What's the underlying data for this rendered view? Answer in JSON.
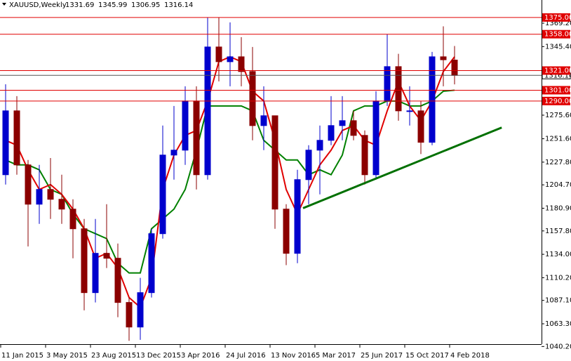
{
  "chart_data": {
    "type": "candlestick",
    "title": "XAUUSD,Weekly",
    "categories": [
      "11 Jan 2015",
      null,
      null,
      null,
      "3 May 2015",
      null,
      null,
      null,
      "23 Aug 2015",
      null,
      null,
      null,
      "13 Dec 2015",
      null,
      null,
      null,
      "3 Apr 2016",
      null,
      null,
      null,
      "24 Jul 2016",
      null,
      null,
      null,
      "13 Nov 2016",
      null,
      null,
      null,
      "5 Mar 2017",
      null,
      null,
      null,
      "25 Jun 2017",
      null,
      null,
      null,
      "15 Oct 2017",
      null,
      null,
      null,
      "4 Feb 2018"
    ],
    "open": [
      1215,
      1280,
      1225,
      1185,
      1200,
      1190,
      1180,
      1160,
      1095,
      1135,
      1130,
      1085,
      1060,
      1095,
      1155,
      1235,
      1240,
      1290,
      1215,
      1345,
      1330,
      1335,
      1320,
      1265,
      1275,
      1180,
      1135,
      1210,
      1240,
      1250,
      1265,
      1270,
      1255,
      1215,
      1290,
      1325,
      1280,
      1280,
      1248,
      1335,
      1331.69
    ],
    "high": [
      1307,
      1295,
      1230,
      1225,
      1232,
      1215,
      1190,
      1170,
      1170,
      1185,
      1145,
      1090,
      1110,
      1160,
      1265,
      1285,
      1305,
      1305,
      1375,
      1375,
      1370,
      1355,
      1345,
      1305,
      1275,
      1185,
      1220,
      1245,
      1265,
      1295,
      1295,
      1280,
      1260,
      1300,
      1358,
      1338,
      1305,
      1290,
      1340,
      1366,
      1345.99
    ],
    "low": [
      1205,
      1215,
      1142,
      1165,
      1170,
      1165,
      1130,
      1077,
      1085,
      1120,
      1070,
      1046,
      1047,
      1090,
      1150,
      1210,
      1225,
      1200,
      1210,
      1310,
      1305,
      1305,
      1250,
      1240,
      1160,
      1123,
      1125,
      1185,
      1195,
      1245,
      1250,
      1250,
      1205,
      1210,
      1285,
      1270,
      1265,
      1236,
      1245,
      1305,
      1306.95
    ],
    "close": [
      1280,
      1225,
      1185,
      1200,
      1190,
      1180,
      1160,
      1095,
      1135,
      1130,
      1085,
      1060,
      1095,
      1155,
      1235,
      1240,
      1290,
      1215,
      1345,
      1330,
      1335,
      1320,
      1265,
      1275,
      1180,
      1135,
      1210,
      1240,
      1250,
      1265,
      1270,
      1255,
      1215,
      1290,
      1325,
      1280,
      1280,
      1248,
      1335,
      1332,
      1316.14
    ],
    "bull_color": "#0000cd",
    "bear_color": "#8b0000",
    "tenkan": {
      "color": "#e00000",
      "values": [
        1250,
        1245,
        1220,
        1200,
        1205,
        1195,
        1180,
        1160,
        1130,
        1135,
        1120,
        1090,
        1080,
        1110,
        1200,
        1235,
        1255,
        1260,
        1290,
        1330,
        1335,
        1330,
        1300,
        1290,
        1250,
        1200,
        1175,
        1200,
        1225,
        1240,
        1260,
        1265,
        1250,
        1245,
        1280,
        1310,
        1285,
        1270,
        1290,
        1320,
        1335
      ]
    },
    "kijun": {
      "color": "#008000",
      "values": [
        1230,
        1225,
        1225,
        1220,
        1200,
        1195,
        1175,
        1160,
        1155,
        1150,
        1125,
        1115,
        1115,
        1160,
        1170,
        1180,
        1200,
        1240,
        1285,
        1285,
        1285,
        1285,
        1280,
        1250,
        1240,
        1230,
        1230,
        1215,
        1220,
        1215,
        1235,
        1280,
        1285,
        1285,
        1290,
        1290,
        1285,
        1285,
        1290,
        1300,
        1301
      ]
    },
    "trendline": {
      "color": "#007000",
      "x": [
        26.5,
        44.2
      ],
      "y": [
        1181,
        1263
      ]
    },
    "levels": [
      {
        "value": 1375,
        "label": "1375.00"
      },
      {
        "value": 1358,
        "label": "1358.00"
      },
      {
        "value": 1321,
        "label": "1321.00"
      },
      {
        "value": 1301,
        "label": "1301.00"
      },
      {
        "value": 1290,
        "label": "1290.00"
      }
    ],
    "level_color": "#e00000",
    "ylim": [
      1043.3,
      1392.8
    ],
    "yticks": [
      {
        "value": 1369.2,
        "label": "1369.20"
      },
      {
        "value": 1345.4,
        "label": "1345.40"
      },
      {
        "value": 1275.6,
        "label": "1275.60"
      },
      {
        "value": 1251.6,
        "label": "1251.60"
      },
      {
        "value": 1227.8,
        "label": "1227.80"
      },
      {
        "value": 1204.7,
        "label": "1204.70"
      },
      {
        "value": 1180.9,
        "label": "1180.90"
      },
      {
        "value": 1157.8,
        "label": "1157.80"
      },
      {
        "value": 1134,
        "label": "1134.00"
      },
      {
        "value": 1110.2,
        "label": "1110.20"
      },
      {
        "value": 1087.1,
        "label": "1087.10"
      },
      {
        "value": 1063.3,
        "label": "1063.30"
      },
      {
        "value": 1040.2,
        "label": "1040.20"
      }
    ]
  }
}
